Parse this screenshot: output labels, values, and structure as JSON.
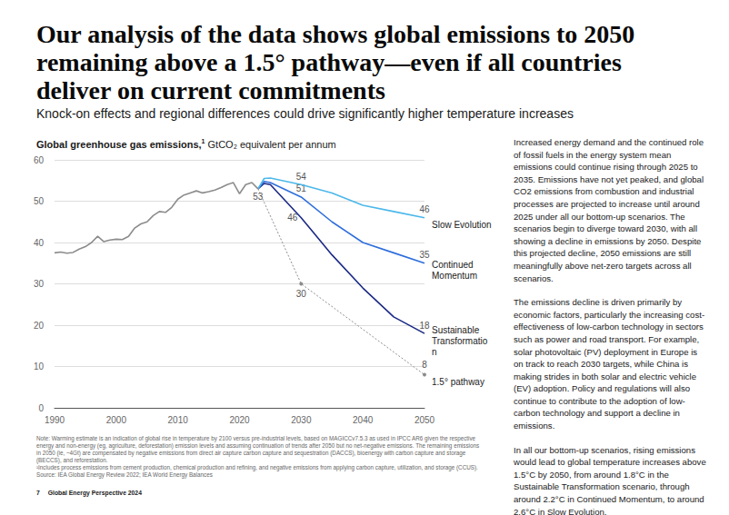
{
  "page": {
    "title": "Our analysis of the data shows global emissions to 2050 remaining above a 1.5° pathway—even if all countries deliver on current commitments",
    "subtitle": "Knock-on effects and regional differences could drive significantly higher temperature increases",
    "side_text": [
      "Increased energy demand and the continued role of fossil fuels in the energy system mean emissions could continue rising through 2025 to 2035. Emissions have not yet peaked, and global CO2 emissions from combustion and industrial processes are projected to increase until around 2025 under all our bottom-up scenarios. The scenarios begin to diverge toward 2030, with all showing a decline in emissions by 2050. Despite this projected decline, 2050 emissions are still meaningfully above net-zero targets across all scenarios.",
      "The emissions decline is driven primarily by economic factors, particularly the increasing cost-effectiveness of low-carbon technology in sectors such as power and road transport. For example, solar photovoltaic (PV) deployment in Europe is on track to reach 2030 targets, while China is making strides in both solar and electric vehicle (EV) adoption. Policy and regulations will also continue to contribute to the adoption of low-carbon technology and support a decline in emissions.",
      "In all our bottom-up scenarios, rising emissions would lead to global temperature increases above 1.5°C by 2050, from around 1.8°C in the Sustainable Transformation scenario, through around 2.2°C in Continued Momentum, to around 2.6°C in Slow Evolution."
    ],
    "notes": [
      "Note: Warming estimate is an indication of global rise in temperature by 2100 versus pre-industrial levels, based on MAGICCv7.5.3 as used in IPCC AR6 given the respective energy and non-energy (eg, agriculture, deforestation) emission levels and assuming continuation of trends after 2050 but no net-negative emissions. The remaining emissions in 2050 (ie, ~4Gt) are compensated by negative emissions from direct air capture carbon capture and sequestration (DACCS), bioenergy with carbon capture and storage (BECCS), and reforestation.",
      "¹Includes process emissions from cement production, chemical production and refining, and negative emissions from applying carbon capture, utilization, and storage (CCUS).",
      "Source: IEA Global Energy Review 2022; IEA World Energy Balances"
    ],
    "footer_page": "7",
    "footer_text": "Global Energy Perspective 2024"
  },
  "chart_data": {
    "type": "line",
    "title": "Global greenhouse gas emissions,",
    "title_note": "1",
    "y_label": "GtCO₂ equivalent per annum",
    "xlim": [
      1990,
      2050
    ],
    "xticks": [
      1990,
      2000,
      2010,
      2020,
      2030,
      2040,
      2050
    ],
    "ylim": [
      0,
      60
    ],
    "yticks": [
      0,
      10,
      20,
      30,
      40,
      50,
      60
    ],
    "grid": true,
    "series": [
      {
        "color": "#8c8c8c",
        "line_style": "solid",
        "x": [
          1990,
          1991,
          1992,
          1993,
          1994,
          1995,
          1996,
          1997,
          1998,
          1999,
          2000,
          2001,
          2002,
          2003,
          2004,
          2005,
          2006,
          2007,
          2008,
          2009,
          2010,
          2011,
          2012,
          2013,
          2014,
          2015,
          2016,
          2017,
          2018,
          2019,
          2020,
          2021,
          2022,
          2023
        ],
        "values": [
          37.5,
          37.7,
          37.4,
          37.6,
          38.4,
          39.0,
          40.0,
          41.5,
          40.2,
          40.6,
          40.8,
          40.7,
          41.5,
          43.5,
          44.5,
          45.0,
          46.5,
          47.5,
          47.3,
          48.5,
          50.5,
          51.5,
          52.0,
          52.5,
          52.0,
          52.3,
          52.7,
          53.3,
          54.0,
          54.5,
          51.8,
          54.0,
          54.5,
          53
        ],
        "label_at": [
          2023
        ]
      },
      {
        "name": "Slow Evolution",
        "color": "#4cb8ea",
        "line_style": "solid",
        "x": [
          2023,
          2024,
          2025,
          2030,
          2035,
          2040,
          2045,
          2050
        ],
        "values": [
          53,
          55.5,
          55.6,
          54,
          52,
          49,
          47.5,
          46
        ],
        "label_at": [
          2030,
          2050
        ]
      },
      {
        "name": "Continued Momentum",
        "color": "#2f6fdc",
        "line_style": "solid",
        "x": [
          2023,
          2024,
          2025,
          2030,
          2035,
          2040,
          2045,
          2050
        ],
        "values": [
          53,
          54.8,
          54.5,
          51,
          45,
          40,
          37.5,
          35
        ],
        "label_at": [
          2030,
          2050
        ]
      },
      {
        "name": "Sustainable Transformation",
        "color": "#1b2a85",
        "line_style": "solid",
        "x": [
          2023,
          2024,
          2025,
          2030,
          2035,
          2040,
          2045,
          2050
        ],
        "values": [
          53,
          54.3,
          54,
          46,
          37,
          29,
          22,
          18
        ],
        "label_at": [
          2030,
          2050
        ]
      },
      {
        "name": "1.5° pathway",
        "color": "#8c8c8c",
        "line_style": "dotted",
        "marker": "circle",
        "x": [
          2023,
          2030,
          2050
        ],
        "values": [
          53,
          30,
          8
        ],
        "label_at": [
          2030,
          2050
        ]
      }
    ]
  }
}
